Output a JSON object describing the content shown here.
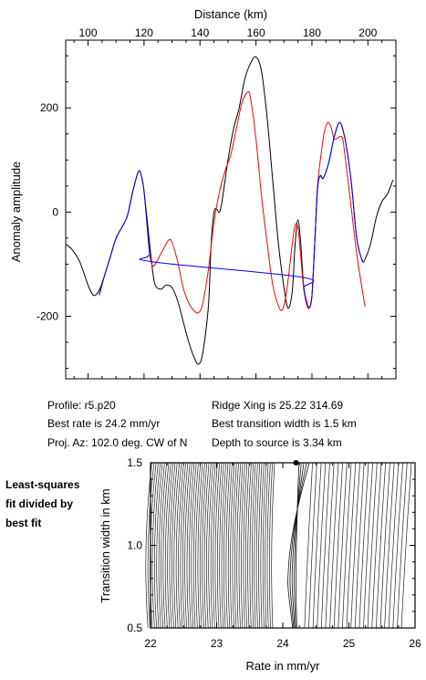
{
  "info": {
    "profile": "Profile: r5.p20",
    "ridge_xing": "Ridge Xing is 25.22 314.69",
    "best_rate": "Best rate is 24.2 mm/yr",
    "best_width": "Best transition width is 1.5 km",
    "proj_az": "Proj. Az: 102.0 deg. CW of N",
    "depth": "Depth to source is   3.34 km"
  },
  "side_label": [
    "Least-squares",
    "fit divided by",
    "best fit"
  ],
  "chart_data": [
    {
      "type": "line",
      "title": "",
      "xlabel": "Distance (km)",
      "ylabel": "Anomaly amplitude",
      "x_axis_position": "top",
      "xlim": [
        92,
        210
      ],
      "ylim": [
        -320,
        330
      ],
      "xticks": [
        100,
        120,
        140,
        160,
        180,
        200
      ],
      "yticks": [
        -200,
        0,
        200
      ],
      "grid": false,
      "legend": "none",
      "series": [
        {
          "color": "#000000",
          "points": [
            [
              92,
              -62
            ],
            [
              94,
              -70
            ],
            [
              97,
              -95
            ],
            [
              100,
              -140
            ],
            [
              102,
              -160
            ],
            [
              104,
              -150
            ],
            [
              106,
              -120
            ],
            [
              108,
              -85
            ],
            [
              110,
              -50
            ],
            [
              112,
              -30
            ],
            [
              114,
              -8
            ],
            [
              116,
              40
            ],
            [
              118,
              78
            ],
            [
              119,
              70
            ],
            [
              120,
              40
            ],
            [
              122,
              -60
            ],
            [
              123,
              -110
            ],
            [
              124,
              -140
            ],
            [
              126,
              -148
            ],
            [
              128,
              -140
            ],
            [
              130,
              -145
            ],
            [
              132,
              -170
            ],
            [
              134,
              -210
            ],
            [
              136,
              -250
            ],
            [
              138,
              -280
            ],
            [
              139.5,
              -292
            ],
            [
              141,
              -270
            ],
            [
              143,
              -180
            ],
            [
              144,
              -60
            ],
            [
              145,
              0
            ],
            [
              146,
              5
            ],
            [
              147,
              0
            ],
            [
              148,
              25
            ],
            [
              150,
              100
            ],
            [
              152,
              160
            ],
            [
              154,
              200
            ],
            [
              156,
              255
            ],
            [
              158,
              285
            ],
            [
              160,
              298
            ],
            [
              162,
              270
            ],
            [
              164,
              180
            ],
            [
              166,
              60
            ],
            [
              168,
              -60
            ],
            [
              170,
              -145
            ],
            [
              171.5,
              -185
            ],
            [
              173,
              -150
            ],
            [
              174,
              -60
            ],
            [
              175,
              -15
            ],
            [
              176,
              -60
            ],
            [
              177,
              -140
            ],
            [
              178,
              -170
            ],
            [
              179,
              -183
            ],
            [
              180,
              -160
            ],
            [
              181,
              -60
            ],
            [
              182,
              45
            ],
            [
              183,
              70
            ],
            [
              184,
              65
            ],
            [
              186,
              95
            ],
            [
              188,
              145
            ],
            [
              190,
              172
            ],
            [
              192,
              135
            ],
            [
              194,
              60
            ],
            [
              196,
              -50
            ],
            [
              198,
              -93
            ],
            [
              199,
              -90
            ],
            [
              201,
              -60
            ],
            [
              203,
              -10
            ],
            [
              205,
              20
            ],
            [
              207,
              35
            ],
            [
              209,
              62
            ]
          ]
        },
        {
          "color": "#ff0000",
          "points": [
            [
              104,
              -160
            ],
            [
              106,
              -120
            ],
            [
              108,
              -85
            ],
            [
              110,
              -50
            ],
            [
              112,
              -30
            ],
            [
              114,
              -8
            ],
            [
              116,
              40
            ],
            [
              118,
              78
            ],
            [
              119,
              70
            ],
            [
              120,
              40
            ],
            [
              121,
              -20
            ],
            [
              122,
              -80
            ],
            [
              123,
              -103
            ],
            [
              124,
              -100
            ],
            [
              126,
              -80
            ],
            [
              128,
              -60
            ],
            [
              129,
              -53
            ],
            [
              130,
              -58
            ],
            [
              132,
              -95
            ],
            [
              134,
              -145
            ],
            [
              136,
              -175
            ],
            [
              138,
              -190
            ],
            [
              139.5,
              -193
            ],
            [
              141,
              -175
            ],
            [
              143,
              -110
            ],
            [
              145,
              -20
            ],
            [
              147,
              40
            ],
            [
              149,
              80
            ],
            [
              151,
              110
            ],
            [
              153,
              160
            ],
            [
              155,
              210
            ],
            [
              157,
              230
            ],
            [
              158,
              220
            ],
            [
              160,
              140
            ],
            [
              162,
              30
            ],
            [
              164,
              -60
            ],
            [
              166,
              -140
            ],
            [
              168,
              -180
            ],
            [
              169.5,
              -187
            ],
            [
              171,
              -150
            ],
            [
              173,
              -60
            ],
            [
              174,
              -25
            ],
            [
              175,
              -30
            ],
            [
              176,
              -85
            ],
            [
              177,
              -145
            ],
            [
              178,
              -175
            ],
            [
              179,
              -185
            ],
            [
              180,
              -160
            ],
            [
              181,
              -60
            ],
            [
              182,
              50
            ],
            [
              184,
              140
            ],
            [
              185,
              165
            ],
            [
              186,
              172
            ],
            [
              187,
              160
            ],
            [
              188,
              140
            ],
            [
              190,
              145
            ],
            [
              191,
              140
            ],
            [
              192,
              100
            ],
            [
              194,
              10
            ],
            [
              196,
              -80
            ],
            [
              198,
              -150
            ],
            [
              199,
              -182
            ]
          ]
        },
        {
          "color": "#0000ff",
          "points": [
            [
              104,
              -158
            ],
            [
              106,
              -120
            ],
            [
              108,
              -85
            ],
            [
              110,
              -50
            ],
            [
              112,
              -30
            ],
            [
              114,
              -8
            ],
            [
              116,
              40
            ],
            [
              118,
              78
            ],
            [
              119,
              70
            ],
            [
              120,
              40
            ],
            [
              121,
              -20
            ],
            [
              122,
              -80
            ],
            [
              122.5,
              -95
            ],
            [
              176.5,
              -125
            ],
            [
              177,
              -145
            ],
            [
              178,
              -170
            ],
            [
              179,
              -183
            ],
            [
              180,
              -160
            ],
            [
              181,
              -60
            ],
            [
              182,
              45
            ],
            [
              183,
              70
            ],
            [
              184,
              65
            ],
            [
              186,
              95
            ],
            [
              188,
              145
            ],
            [
              190,
              172
            ],
            [
              192,
              135
            ],
            [
              194,
              60
            ],
            [
              196,
              -50
            ],
            [
              198,
              -95
            ]
          ]
        }
      ]
    },
    {
      "type": "contour",
      "title": "",
      "xlabel": "Rate in mm/yr",
      "ylabel": "Transition width in km",
      "xlim": [
        22,
        26
      ],
      "ylim": [
        0.5,
        1.5
      ],
      "xticks": [
        22,
        23,
        24,
        25,
        26
      ],
      "yticks": [
        0.5,
        1.0,
        1.5
      ],
      "grid": false,
      "best_fit_point": [
        24.2,
        1.5
      ]
    }
  ]
}
